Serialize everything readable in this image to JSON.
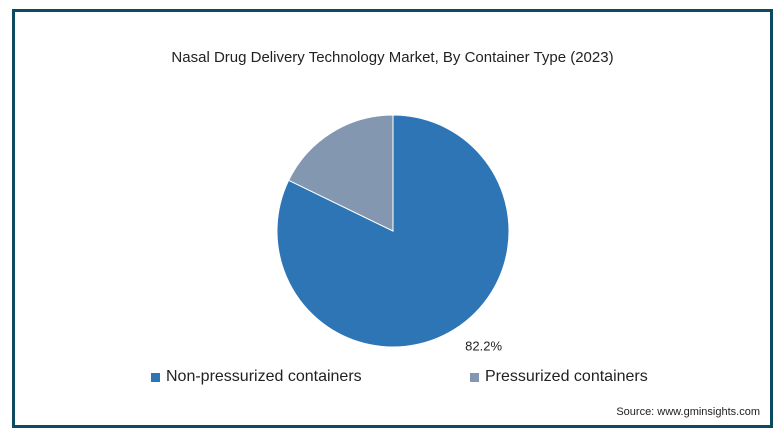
{
  "chart_data": {
    "type": "pie",
    "title": "Nasal Drug Delivery Technology Market, By Container Type (2023)",
    "slices": [
      {
        "name": "Non-pressurized containers",
        "value": 82.2,
        "label": "82.2%",
        "color": "#2e75b6"
      },
      {
        "name": "Pressurized containers",
        "value": 17.8,
        "label": "",
        "color": "#8497b0"
      }
    ],
    "legend_position": "bottom"
  },
  "source": "Source: www.gminsights.com",
  "colors": {
    "frame_border": "#0c4a63",
    "slice_border": "#ffffff"
  }
}
